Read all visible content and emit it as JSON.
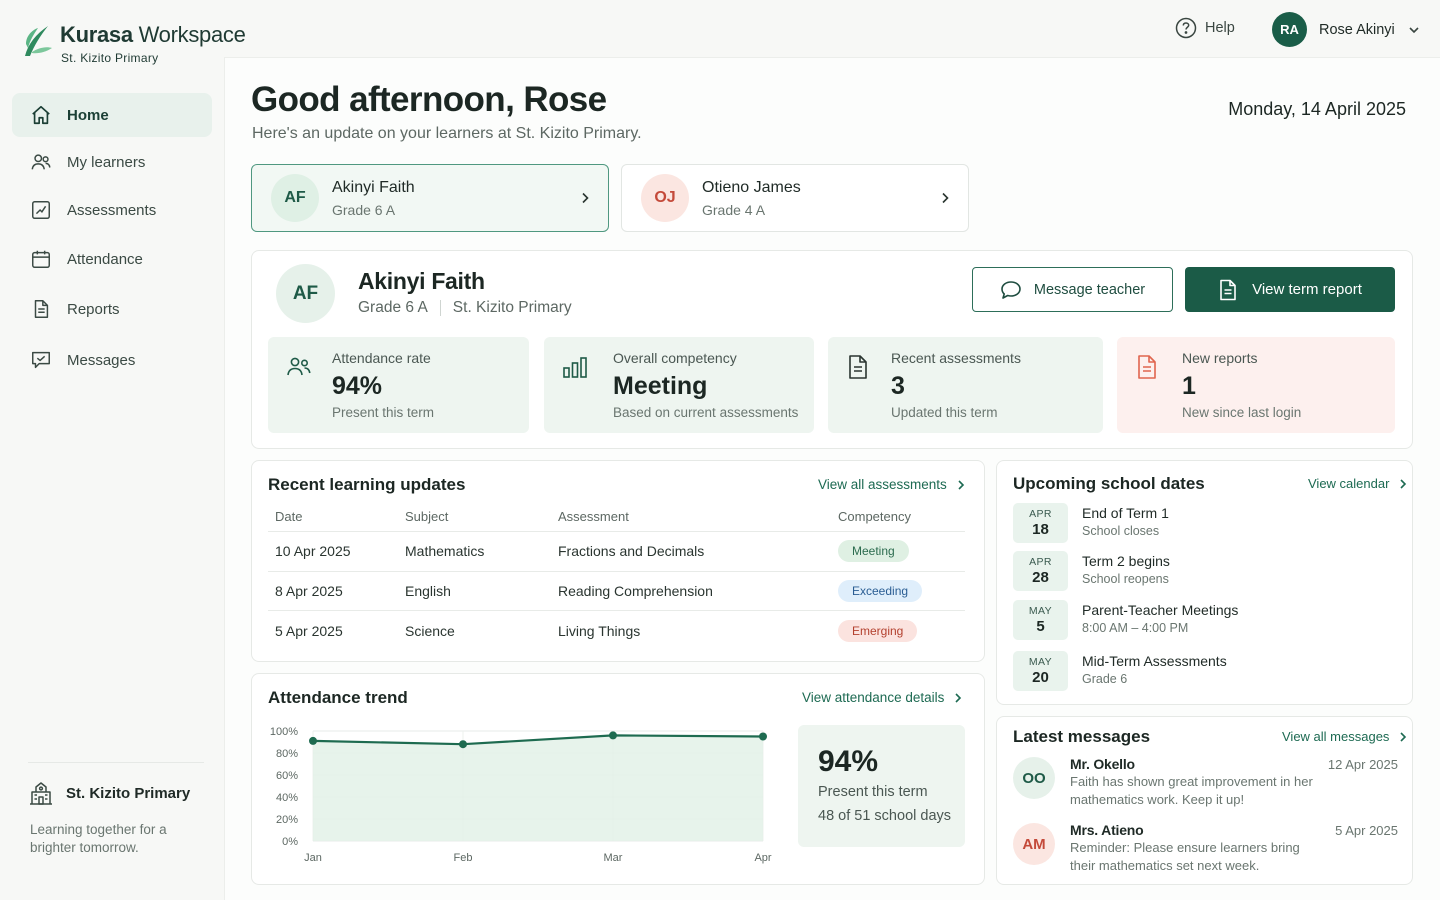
{
  "brand": {
    "name_bold": "Kurasa",
    "name_light": " Workspace",
    "school": "St. Kizito Primary"
  },
  "topbar": {
    "help_label": "Help",
    "user_initials": "RA",
    "user_name": "Rose Akinyi"
  },
  "sidebar": {
    "items": [
      {
        "label": "Home",
        "icon": "home-icon"
      },
      {
        "label": "My learners",
        "icon": "users-icon"
      },
      {
        "label": "Assessments",
        "icon": "chart-icon"
      },
      {
        "label": "Attendance",
        "icon": "calendar-icon"
      },
      {
        "label": "Reports",
        "icon": "document-icon"
      },
      {
        "label": "Messages",
        "icon": "message-icon"
      }
    ],
    "footer": {
      "school": "St. Kizito Primary",
      "tagline": "Learning together for a brighter tomorrow."
    }
  },
  "greeting": {
    "title": "Good afternoon, Rose",
    "subtitle": "Here's an update on your learners at St. Kizito Primary.",
    "date": "Monday, 14 April 2025"
  },
  "learners": [
    {
      "initials": "AF",
      "name": "Akinyi Faith",
      "grade": "Grade 6 A",
      "selected": true
    },
    {
      "initials": "OJ",
      "name": "Otieno James",
      "grade": "Grade 4 A",
      "selected": false
    }
  ],
  "selected_learner": {
    "initials": "AF",
    "name": "Akinyi Faith",
    "grade": "Grade 6 A",
    "school": "St. Kizito Primary",
    "message_button": "Message teacher",
    "report_button": "View term report",
    "stats": [
      {
        "label": "Attendance rate",
        "value": "94%",
        "note": "Present this term",
        "icon": "users-icon"
      },
      {
        "label": "Overall competency",
        "value": "Meeting",
        "note": "Based on current assessments",
        "icon": "bar-chart-icon"
      },
      {
        "label": "Recent assessments",
        "value": "3",
        "note": "Updated this term",
        "icon": "document-icon"
      },
      {
        "label": "New reports",
        "value": "1",
        "note": "New since last login",
        "icon": "report-icon"
      }
    ]
  },
  "updates": {
    "title": "Recent learning updates",
    "link": "View all assessments",
    "columns": [
      "Date",
      "Subject",
      "Assessment",
      "Competency"
    ],
    "rows": [
      {
        "date": "10 Apr 2025",
        "subject": "Mathematics",
        "assessment": "Fractions and Decimals",
        "competency": "Meeting"
      },
      {
        "date": "8 Apr 2025",
        "subject": "English",
        "assessment": "Reading Comprehension",
        "competency": "Exceeding"
      },
      {
        "date": "5 Apr 2025",
        "subject": "Science",
        "assessment": "Living Things",
        "competency": "Emerging"
      }
    ]
  },
  "attendance_trend": {
    "title": "Attendance trend",
    "link": "View attendance details",
    "summary_value": "94%",
    "summary_label": "Present this term",
    "summary_days": "48 of 51 school days"
  },
  "chart_data": {
    "type": "area",
    "categories": [
      "Jan",
      "Feb",
      "Mar",
      "Apr"
    ],
    "series": [
      {
        "values": [
          91,
          88,
          96,
          95
        ]
      }
    ],
    "y_ticks": [
      "100%",
      "80%",
      "60%",
      "40%",
      "20%",
      "0%"
    ],
    "ylim": [
      0,
      100
    ],
    "grid": true
  },
  "upcoming": {
    "title": "Upcoming school dates",
    "link": "View calendar",
    "events": [
      {
        "month": "APR",
        "day": "18",
        "title": "End of Term 1",
        "sub": "School closes"
      },
      {
        "month": "APR",
        "day": "28",
        "title": "Term 2 begins",
        "sub": "School reopens"
      },
      {
        "month": "MAY",
        "day": "5",
        "title": "Parent-Teacher Meetings",
        "sub": "8:00 AM – 4:00 PM"
      },
      {
        "month": "MAY",
        "day": "20",
        "title": "Mid-Term Assessments",
        "sub": "Grade 6"
      }
    ]
  },
  "messages": {
    "title": "Latest messages",
    "link": "View all messages",
    "items": [
      {
        "initials": "OO",
        "from": "Mr. Okello",
        "date": "12 Apr 2025",
        "text": "Faith has shown great improvement in her mathematics work. Keep it up!"
      },
      {
        "initials": "AM",
        "from": "Mrs. Atieno",
        "date": "5 Apr 2025",
        "text": "Reminder: Please ensure learners bring their mathematics set next week."
      }
    ]
  },
  "colors": {
    "brand": "#1b5b47",
    "accent_light": "#eef5f0",
    "report_tint": "#fdf0ee",
    "meeting": "#dff0e3",
    "exceeding": "#dfeefb",
    "emerging": "#fbe3df"
  }
}
